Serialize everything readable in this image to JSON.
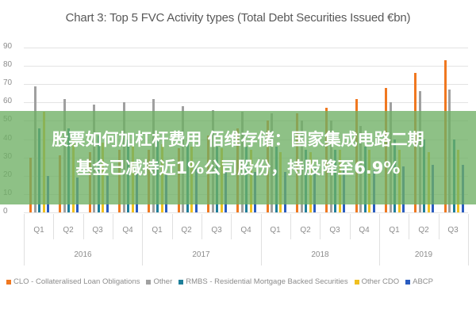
{
  "chart_data": {
    "type": "bar",
    "title": "Chart 3: Top 5 FVC Activity types (Total Debt Securities Issued €bn)",
    "xlabel": "",
    "ylabel": "",
    "ylim": [
      0,
      90
    ],
    "yticks": [
      0,
      10,
      20,
      30,
      40,
      50,
      60,
      70,
      80,
      90
    ],
    "grid": true,
    "legend_position": "bottom",
    "categories": [
      "2016 Q1",
      "2016 Q2",
      "2016 Q3",
      "2016 Q4",
      "2017 Q1",
      "2017 Q2",
      "2017 Q3",
      "2017 Q4",
      "2018 Q1",
      "2018 Q2",
      "2018 Q3",
      "2018 Q4",
      "2019 Q1",
      "2019 Q2",
      "2019 Q3"
    ],
    "quarter_labels": [
      "Q1",
      "Q2",
      "Q3",
      "Q4",
      "Q1",
      "Q2",
      "Q3",
      "Q4",
      "Q1",
      "Q2",
      "Q3",
      "Q4",
      "Q1",
      "Q2",
      "Q3"
    ],
    "year_labels": [
      "2016",
      "2017",
      "2018",
      "2019"
    ],
    "series": [
      {
        "name": "CLO - Collateralised Loan Obligations",
        "color": "#f07820",
        "values": [
          30,
          31,
          33,
          34,
          34,
          35,
          42,
          46,
          50,
          54,
          57,
          62,
          68,
          76,
          83
        ]
      },
      {
        "name": "Other",
        "color": "#a0a0a0",
        "values": [
          69,
          62,
          59,
          60,
          62,
          58,
          56,
          55,
          54,
          50,
          50,
          47,
          60,
          66,
          67
        ]
      },
      {
        "name": "RMBS - Residential Mortgage Backed Securities",
        "color": "#1f7f9a",
        "values": [
          46,
          46,
          42,
          40,
          40,
          38,
          36,
          36,
          36,
          34,
          34,
          36,
          40,
          40,
          40
        ]
      },
      {
        "name": "Other CDO",
        "color": "#f0c020",
        "values": [
          55,
          40,
          38,
          37,
          37,
          36,
          35,
          34,
          33,
          33,
          34,
          34,
          34,
          33,
          34
        ]
      },
      {
        "name": "ABCP",
        "color": "#2a5cc0",
        "values": [
          20,
          19,
          20,
          21,
          21,
          24,
          22,
          22,
          22,
          24,
          23,
          23,
          25,
          26,
          26
        ]
      }
    ]
  },
  "overlay": {
    "line1": "股票如何加杠杆费用 佰维存储：国家集成电路二期",
    "line2": "基金已减持近1%公司股份，持股降至6.9%"
  }
}
